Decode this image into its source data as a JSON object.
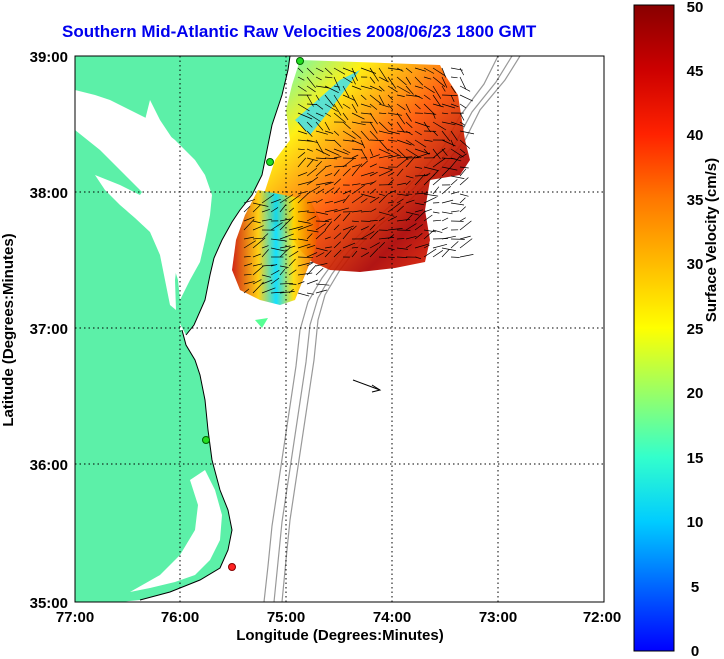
{
  "title": "Southern Mid-Atlantic Raw Velocities 2008/06/23 1800 GMT",
  "x_axis": {
    "label": "Longitude (Degrees:Minutes)",
    "ticks": [
      "77:00",
      "76:00",
      "75:00",
      "74:00",
      "73:00",
      "72:00"
    ]
  },
  "y_axis": {
    "label": "Latitude (Degrees:Minutes)",
    "ticks": [
      "39:00",
      "38:00",
      "37:00",
      "36:00",
      "35:00"
    ]
  },
  "colorbar": {
    "label": "Surface Velocity (cm/s)",
    "ticks": [
      "0",
      "5",
      "10",
      "15",
      "20",
      "25",
      "30",
      "35",
      "40",
      "45",
      "50"
    ],
    "min": 0,
    "max": 50,
    "colormap": [
      "#0000ff",
      "#00aaff",
      "#00ffff",
      "#55ffaa",
      "#aaff55",
      "#ffff00",
      "#ffaa00",
      "#ff5500",
      "#ff0000",
      "#bb0000",
      "#880000"
    ]
  },
  "colors": {
    "land": "#5cf0a8",
    "water": "#ffffff",
    "coastline": "#000000",
    "bathymetry": "#999999",
    "grid": "#000000",
    "title": "#0000ee",
    "station_green": "#22dd22",
    "station_red": "#ff2222"
  },
  "legend_arrow": "reference vector"
}
